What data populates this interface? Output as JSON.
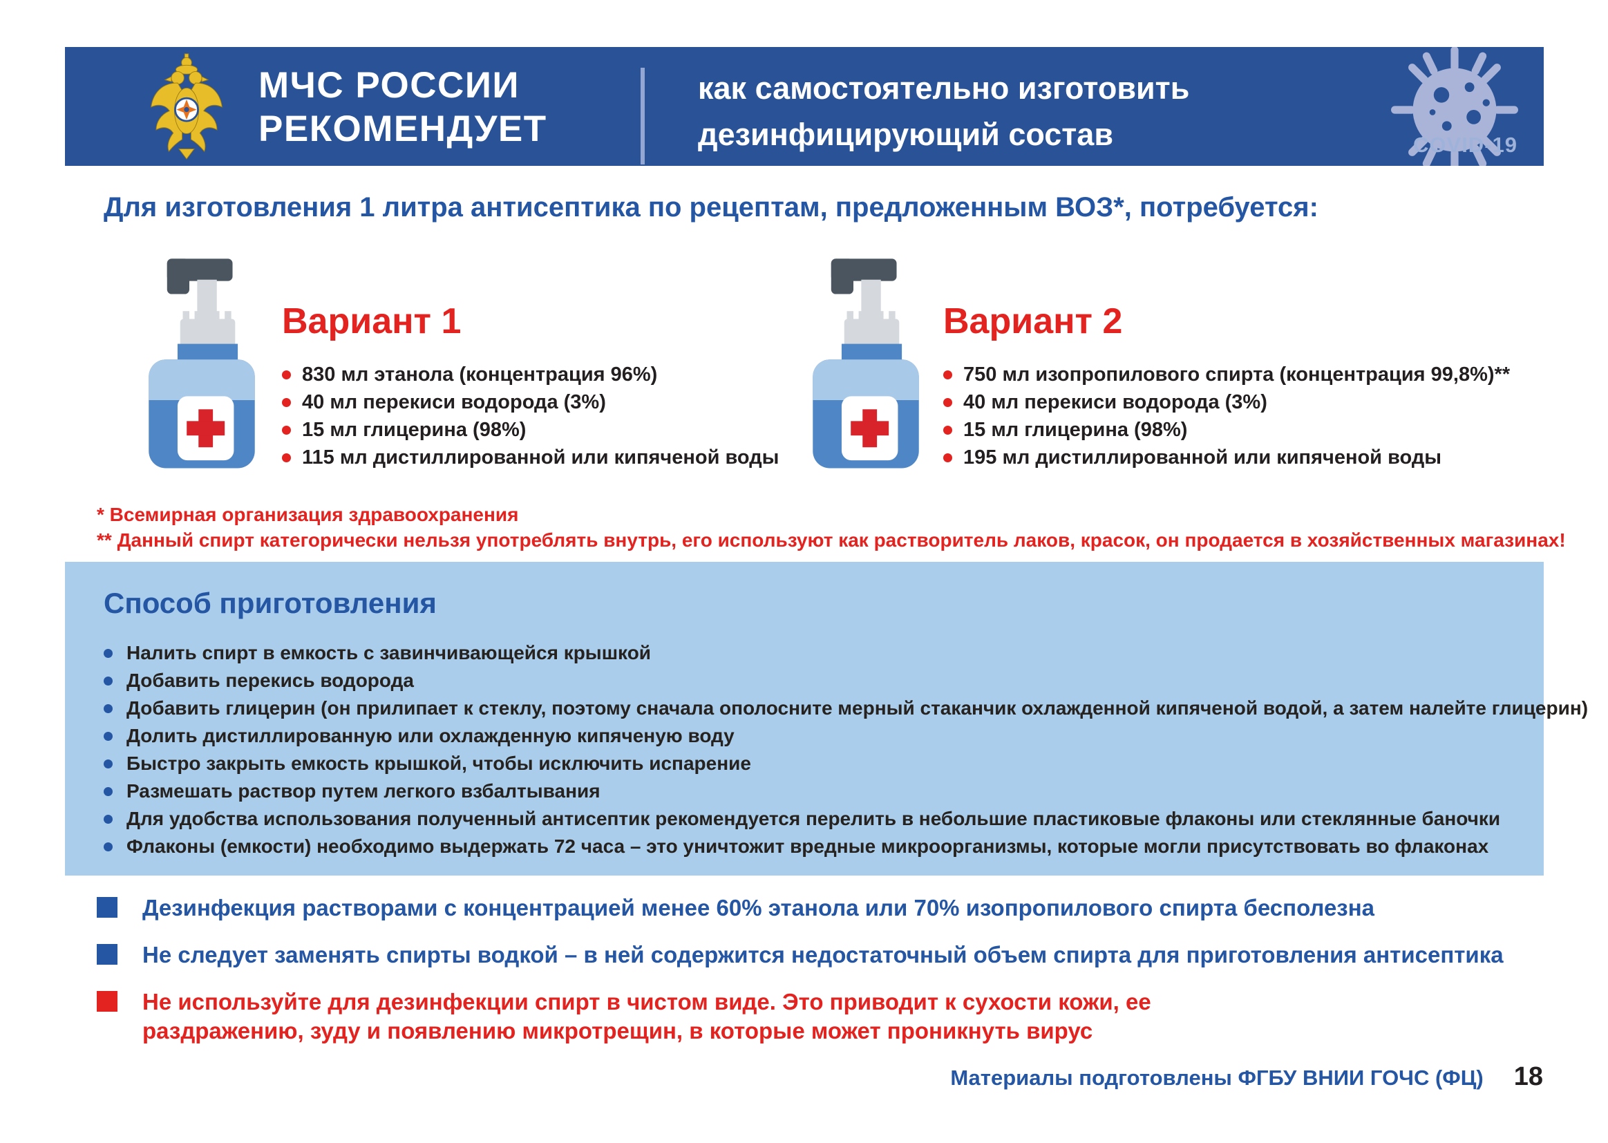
{
  "page": {
    "covid_label": "COVID-19",
    "footer": "Материалы подготовлены ФГБУ ВНИИ ГОЧС (ФЦ)",
    "page_number": "18"
  },
  "header": {
    "org_line1": "МЧС РОССИИ",
    "org_line2": "РЕКОМЕНДУЕТ",
    "title_line1": "как самостоятельно изготовить",
    "title_line2": "дезинфицирующий состав"
  },
  "intro": "Для изготовления 1 литра антисептика по рецептам, предложенным ВОЗ*, потребуется:",
  "variant1": {
    "title": "Вариант 1",
    "items": [
      "830 мл этанола (концентрация 96%)",
      "40 мл перекиси водорода (3%)",
      "15 мл глицерина (98%)",
      "115 мл дистиллированной или кипяченой воды"
    ]
  },
  "variant2": {
    "title": "Вариант 2",
    "items": [
      "750 мл изопропилового спирта (концентрация 99,8%)**",
      "40 мл перекиси водорода (3%)",
      "15 мл глицерина (98%)",
      "195 мл дистиллированной или кипяченой воды"
    ]
  },
  "footnotes": [
    "* Всемирная организация здравоохранения",
    "** Данный спирт категорически нельзя употреблять внутрь, его используют как растворитель лаков, красок, он продается в хозяйственных магазинах!"
  ],
  "method": {
    "title": "Способ приготовления",
    "steps": [
      "Налить спирт в емкость с завинчивающейся крышкой",
      "Добавить перекись водорода",
      "Добавить глицерин (он прилипает к стеклу, поэтому сначала ополосните мерный стаканчик охлажденной кипяченой водой, а затем налейте глицерин)",
      "Долить дистиллированную или охлажденную кипяченую воду",
      "Быстро закрыть емкость крышкой, чтобы исключить испарение",
      "Размешать раствор путем легкого взбалтывания",
      "Для удобства использования полученный антисептик рекомендуется перелить в небольшие пластиковые флаконы или стеклянные баночки",
      "Флаконы (емкости) необходимо выдержать 72 часа – это уничтожит вредные микроорганизмы, которые могли присутствовать во флаконах"
    ]
  },
  "warnings": [
    {
      "type": "info",
      "text": "Дезинфекция растворами с концентрацией менее 60% этанола или 70% изопропилового спирта бесполезна"
    },
    {
      "type": "info",
      "text": "Не следует заменять спирты водкой – в ней содержится недостаточный объем спирта для приготовления антисептика"
    },
    {
      "type": "danger",
      "text": "Не используйте для дезинфекции спирт в чистом виде. Это приводит к сухости кожи, ее раздражению, зуду и появлению микротрещин, в которые может проникнуть вирус"
    }
  ],
  "colors": {
    "band_blue": "#2A5397",
    "light_band": "#AACDEB",
    "accent_red": "#E2231F",
    "accent_blue": "#2456A4",
    "text_dark": "#231F20",
    "covid_label": "#9FB3DA",
    "virus_icon": "#A9B4D8",
    "emblem_gold": "#E7BD2A",
    "bottle_body": "#4E86C6",
    "bottle_shoulder": "#A9C9E9"
  }
}
